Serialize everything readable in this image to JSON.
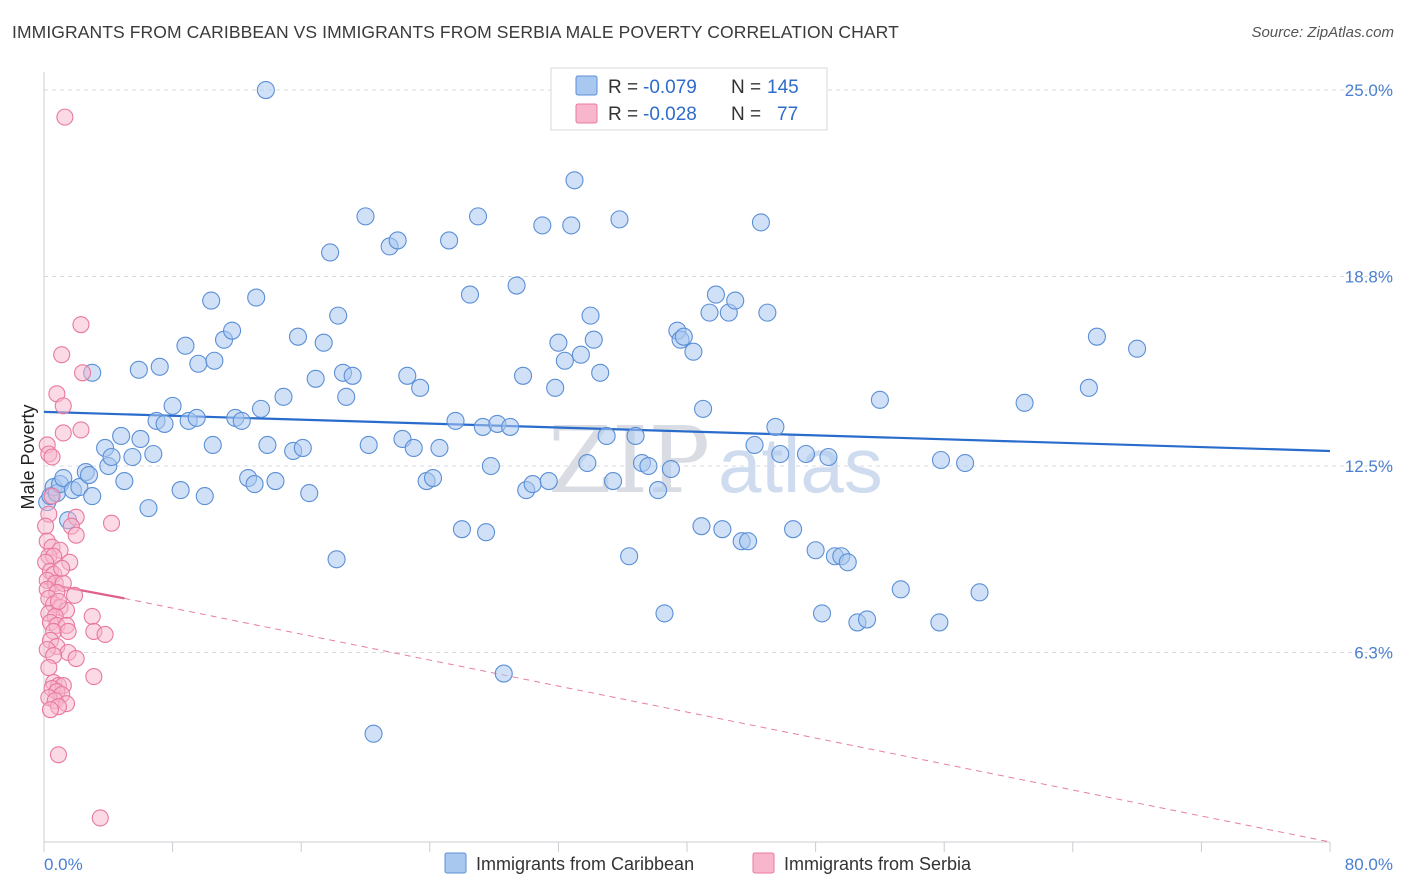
{
  "header": {
    "title": "IMMIGRANTS FROM CARIBBEAN VS IMMIGRANTS FROM SERBIA MALE POVERTY CORRELATION CHART",
    "source": "Source: ZipAtlas.com"
  },
  "watermark": {
    "part1": "ZIP",
    "part2": "atlas"
  },
  "legend": {
    "series1": {
      "r_label": "R =",
      "r_value": "-0.079",
      "n_label": "N =",
      "n_value": "145"
    },
    "series2": {
      "r_label": "R =",
      "r_value": "-0.028",
      "n_label": "N =",
      "n_value": "77"
    }
  },
  "colors": {
    "caribbean_fill": "#a9c8f0",
    "caribbean_stroke": "#5b8fd6",
    "caribbean_line": "#2a6ccc",
    "serbia_fill": "#f7b6cb",
    "serbia_stroke": "#e8799e",
    "serbia_line": "#e0608c",
    "grid": "#d7dbe0"
  },
  "chart_data": {
    "type": "scatter",
    "title": "IMMIGRANTS FROM CARIBBEAN VS IMMIGRANTS FROM SERBIA MALE POVERTY CORRELATION CHART",
    "ylabel": "Male Poverty",
    "xlabel": "",
    "xlim": [
      0,
      80
    ],
    "ylim": [
      0,
      25.6
    ],
    "x_tick_labels": [
      "0.0%",
      "80.0%"
    ],
    "y_ticks": [
      6.3,
      12.5,
      18.8,
      25.0
    ],
    "y_tick_labels": [
      "6.3%",
      "12.5%",
      "18.8%",
      "25.0%"
    ],
    "legend_placement": "top-center",
    "grid": true,
    "series": [
      {
        "name": "Immigrants from Caribbean",
        "trend": {
          "x": [
            0,
            80
          ],
          "y": [
            14.3,
            13.0
          ]
        },
        "points": [
          [
            0.2,
            11.3
          ],
          [
            0.4,
            11.5
          ],
          [
            0.6,
            11.8
          ],
          [
            0.8,
            11.6
          ],
          [
            1.0,
            11.9
          ],
          [
            1.2,
            12.1
          ],
          [
            1.5,
            10.7
          ],
          [
            1.8,
            11.7
          ],
          [
            2.2,
            11.8
          ],
          [
            2.6,
            12.3
          ],
          [
            2.8,
            12.2
          ],
          [
            3.0,
            11.5
          ],
          [
            3.0,
            15.6
          ],
          [
            3.8,
            13.1
          ],
          [
            4.0,
            12.5
          ],
          [
            4.2,
            12.8
          ],
          [
            4.8,
            13.5
          ],
          [
            5.0,
            12.0
          ],
          [
            5.5,
            12.8
          ],
          [
            6.0,
            13.4
          ],
          [
            6.5,
            11.1
          ],
          [
            6.8,
            12.9
          ],
          [
            7.0,
            14.0
          ],
          [
            7.5,
            13.9
          ],
          [
            8.0,
            14.5
          ],
          [
            8.5,
            11.7
          ],
          [
            9.0,
            14.0
          ],
          [
            9.5,
            14.1
          ],
          [
            10.0,
            11.5
          ],
          [
            10.5,
            13.2
          ],
          [
            5.9,
            15.7
          ],
          [
            7.2,
            15.8
          ],
          [
            8.8,
            16.5
          ],
          [
            9.6,
            15.9
          ],
          [
            10.6,
            16.0
          ],
          [
            11.2,
            16.7
          ],
          [
            11.7,
            17.0
          ],
          [
            10.4,
            18.0
          ],
          [
            13.2,
            18.1
          ],
          [
            11.9,
            14.1
          ],
          [
            12.3,
            14.0
          ],
          [
            12.7,
            12.1
          ],
          [
            13.1,
            11.9
          ],
          [
            13.5,
            14.4
          ],
          [
            13.9,
            13.2
          ],
          [
            14.4,
            12.0
          ],
          [
            14.9,
            14.8
          ],
          [
            15.5,
            13.0
          ],
          [
            15.8,
            16.8
          ],
          [
            16.1,
            13.1
          ],
          [
            16.5,
            11.6
          ],
          [
            16.9,
            15.4
          ],
          [
            17.4,
            16.6
          ],
          [
            17.8,
            19.6
          ],
          [
            18.3,
            17.5
          ],
          [
            18.6,
            15.6
          ],
          [
            18.8,
            14.8
          ],
          [
            19.2,
            15.5
          ],
          [
            13.8,
            25.0
          ],
          [
            18.2,
            9.4
          ],
          [
            20.0,
            20.8
          ],
          [
            20.2,
            13.2
          ],
          [
            20.5,
            3.6
          ],
          [
            21.5,
            19.8
          ],
          [
            22.0,
            20.0
          ],
          [
            22.3,
            13.4
          ],
          [
            22.6,
            15.5
          ],
          [
            23.0,
            13.1
          ],
          [
            23.4,
            15.1
          ],
          [
            23.8,
            12.0
          ],
          [
            24.2,
            12.1
          ],
          [
            24.6,
            13.1
          ],
          [
            25.2,
            20.0
          ],
          [
            25.6,
            14.0
          ],
          [
            26.0,
            10.4
          ],
          [
            26.5,
            18.2
          ],
          [
            27.0,
            20.8
          ],
          [
            27.3,
            13.8
          ],
          [
            27.5,
            10.3
          ],
          [
            27.8,
            12.5
          ],
          [
            28.2,
            13.9
          ],
          [
            28.6,
            5.6
          ],
          [
            29.0,
            13.8
          ],
          [
            29.4,
            18.5
          ],
          [
            29.8,
            15.5
          ],
          [
            30.0,
            11.7
          ],
          [
            30.4,
            11.9
          ],
          [
            31.0,
            20.5
          ],
          [
            31.4,
            12.0
          ],
          [
            31.8,
            15.1
          ],
          [
            32.0,
            16.6
          ],
          [
            32.4,
            16.0
          ],
          [
            32.8,
            20.5
          ],
          [
            33.0,
            22.0
          ],
          [
            33.4,
            16.2
          ],
          [
            33.8,
            12.6
          ],
          [
            34.0,
            17.5
          ],
          [
            34.2,
            16.7
          ],
          [
            34.6,
            15.6
          ],
          [
            35.0,
            13.5
          ],
          [
            35.4,
            12.0
          ],
          [
            35.8,
            20.7
          ],
          [
            36.4,
            9.5
          ],
          [
            36.8,
            13.5
          ],
          [
            37.2,
            12.6
          ],
          [
            37.6,
            12.5
          ],
          [
            38.2,
            11.7
          ],
          [
            38.6,
            7.6
          ],
          [
            39.0,
            12.4
          ],
          [
            39.4,
            17.0
          ],
          [
            39.6,
            16.7
          ],
          [
            39.8,
            16.8
          ],
          [
            40.4,
            16.3
          ],
          [
            40.9,
            10.5
          ],
          [
            41.0,
            14.4
          ],
          [
            41.4,
            17.6
          ],
          [
            41.8,
            18.2
          ],
          [
            42.2,
            10.4
          ],
          [
            42.6,
            17.6
          ],
          [
            43.0,
            18.0
          ],
          [
            43.4,
            10.0
          ],
          [
            43.8,
            10.0
          ],
          [
            44.2,
            13.2
          ],
          [
            44.6,
            20.6
          ],
          [
            45.0,
            17.6
          ],
          [
            45.5,
            13.8
          ],
          [
            45.8,
            12.9
          ],
          [
            46.6,
            10.4
          ],
          [
            47.4,
            12.9
          ],
          [
            48.0,
            9.7
          ],
          [
            48.4,
            7.6
          ],
          [
            48.8,
            12.8
          ],
          [
            49.2,
            9.5
          ],
          [
            49.6,
            9.5
          ],
          [
            50.0,
            9.3
          ],
          [
            50.6,
            7.3
          ],
          [
            51.2,
            7.4
          ],
          [
            52.0,
            14.7
          ],
          [
            53.3,
            8.4
          ],
          [
            55.7,
            7.3
          ],
          [
            55.8,
            12.7
          ],
          [
            57.3,
            12.6
          ],
          [
            58.2,
            8.3
          ],
          [
            61.0,
            14.6
          ],
          [
            65.0,
            15.1
          ],
          [
            65.5,
            16.8
          ],
          [
            68.0,
            16.4
          ]
        ]
      },
      {
        "name": "Immigrants from Serbia",
        "trend": {
          "x": [
            0,
            5
          ],
          "y": [
            8.6,
            8.1
          ],
          "extrapolated": {
            "x": [
              5,
              80
            ],
            "y": [
              8.1,
              0.0
            ]
          }
        },
        "points": [
          [
            1.3,
            24.1
          ],
          [
            2.3,
            17.2
          ],
          [
            1.1,
            16.2
          ],
          [
            2.4,
            15.6
          ],
          [
            0.8,
            14.9
          ],
          [
            1.2,
            14.5
          ],
          [
            1.2,
            13.6
          ],
          [
            2.3,
            13.7
          ],
          [
            0.2,
            13.2
          ],
          [
            0.3,
            12.9
          ],
          [
            0.5,
            11.5
          ],
          [
            0.3,
            10.9
          ],
          [
            2.0,
            10.8
          ],
          [
            4.2,
            10.6
          ],
          [
            0.1,
            10.5
          ],
          [
            1.7,
            10.5
          ],
          [
            2.0,
            10.2
          ],
          [
            0.2,
            10.0
          ],
          [
            0.5,
            9.8
          ],
          [
            1.0,
            9.7
          ],
          [
            0.3,
            9.5
          ],
          [
            0.6,
            9.5
          ],
          [
            0.1,
            9.3
          ],
          [
            1.6,
            9.3
          ],
          [
            0.4,
            9.0
          ],
          [
            0.6,
            8.9
          ],
          [
            0.2,
            8.7
          ],
          [
            0.7,
            8.6
          ],
          [
            1.2,
            8.6
          ],
          [
            0.2,
            8.4
          ],
          [
            0.8,
            8.3
          ],
          [
            1.9,
            8.2
          ],
          [
            0.3,
            8.1
          ],
          [
            0.6,
            7.9
          ],
          [
            1.0,
            7.8
          ],
          [
            1.4,
            7.7
          ],
          [
            0.3,
            7.6
          ],
          [
            0.7,
            7.5
          ],
          [
            3.0,
            7.5
          ],
          [
            0.4,
            7.3
          ],
          [
            0.8,
            7.2
          ],
          [
            1.4,
            7.2
          ],
          [
            0.6,
            7.0
          ],
          [
            1.5,
            7.0
          ],
          [
            3.1,
            7.0
          ],
          [
            3.8,
            6.9
          ],
          [
            0.4,
            6.7
          ],
          [
            0.8,
            6.5
          ],
          [
            0.2,
            6.4
          ],
          [
            1.5,
            6.3
          ],
          [
            0.6,
            6.2
          ],
          [
            2.0,
            6.1
          ],
          [
            0.3,
            5.8
          ],
          [
            3.1,
            5.5
          ],
          [
            0.6,
            5.3
          ],
          [
            0.9,
            5.2
          ],
          [
            1.2,
            5.2
          ],
          [
            0.5,
            5.1
          ],
          [
            0.8,
            5.0
          ],
          [
            1.1,
            4.9
          ],
          [
            0.3,
            4.8
          ],
          [
            0.7,
            4.7
          ],
          [
            1.4,
            4.6
          ],
          [
            0.9,
            4.5
          ],
          [
            0.4,
            4.4
          ],
          [
            0.9,
            2.9
          ],
          [
            3.5,
            0.8
          ],
          [
            0.5,
            12.8
          ],
          [
            1.1,
            9.1
          ],
          [
            0.9,
            8.0
          ]
        ]
      }
    ]
  },
  "bottom_legend": {
    "item1": "Immigrants from Caribbean",
    "item2": "Immigrants from Serbia"
  }
}
